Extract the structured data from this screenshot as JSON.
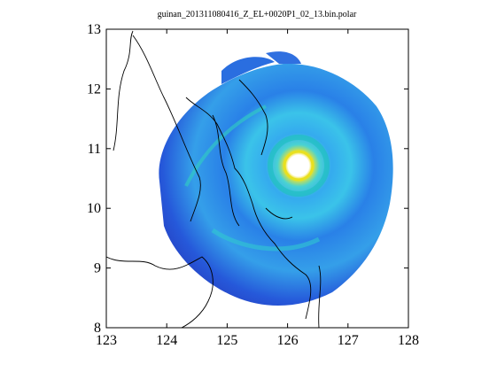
{
  "chart_data": {
    "type": "radar-map",
    "title": "guinan_201311080416_Z_EL+0020P1_02_13.bin.polar",
    "xlim": [
      123,
      128
    ],
    "ylim": [
      8,
      13
    ],
    "xticks": [
      123,
      124,
      125,
      126,
      127,
      128
    ],
    "yticks": [
      8,
      9,
      10,
      11,
      12,
      13
    ]
  }
}
